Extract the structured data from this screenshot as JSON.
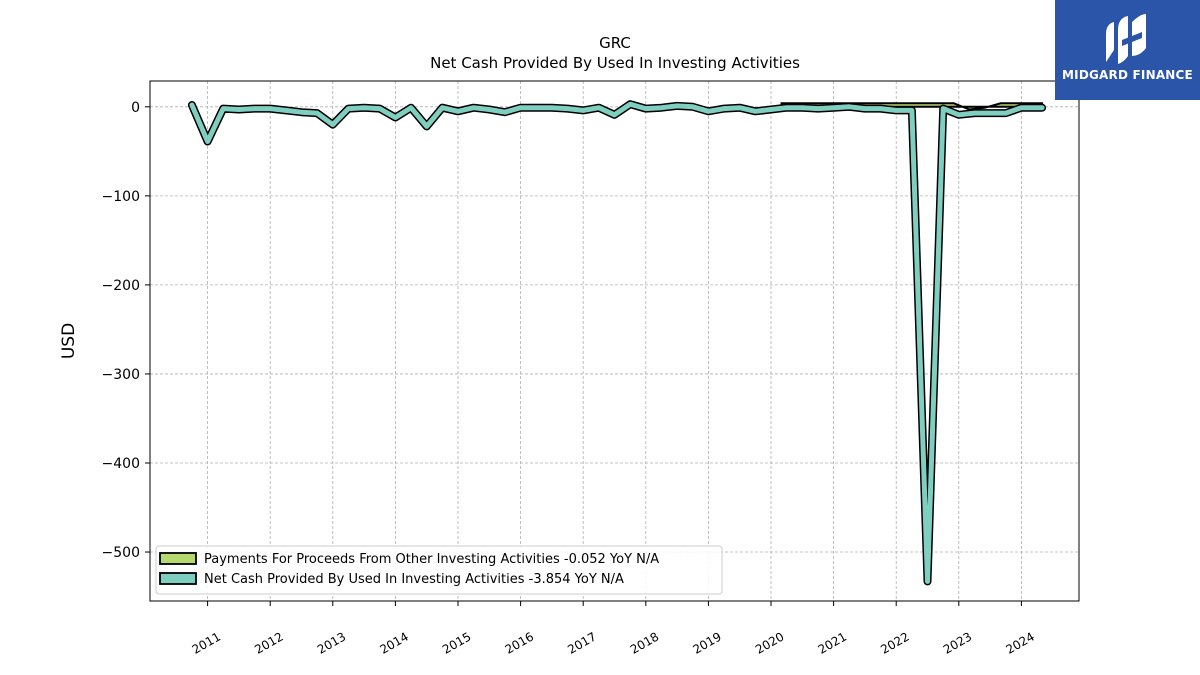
{
  "logo": {
    "text": "MIDGARD FINANCE",
    "color": "#2b55a8"
  },
  "chart_data": {
    "type": "line",
    "title": "GRC",
    "subtitle": "Net Cash Provided By Used In Investing Activities",
    "xlabel": "",
    "ylabel": "USD",
    "xlim": [
      2010.08,
      2024.92
    ],
    "ylim": [
      -555,
      29
    ],
    "x_ticks": [
      "2011",
      "2012",
      "2013",
      "2014",
      "2015",
      "2016",
      "2017",
      "2018",
      "2019",
      "2020",
      "2021",
      "2022",
      "2023",
      "2024"
    ],
    "y_ticks": [
      0,
      -100,
      -200,
      -300,
      -400,
      -500
    ],
    "y_tick_labels": [
      "0",
      "−100",
      "−200",
      "−300",
      "−400",
      "−500"
    ],
    "grid": true,
    "legend_position": "lower-left",
    "series": [
      {
        "name": "Payments For Proceeds From Other Investing Activities  -0.052 YoY N/A",
        "style": "area",
        "color": "#b5d96e",
        "x": [
          2020.17,
          2020.42,
          2020.67,
          2020.92,
          2021.17,
          2021.42,
          2021.67,
          2021.92,
          2022.17,
          2022.42,
          2022.67,
          2022.92,
          2023.17,
          2023.42,
          2023.67,
          2023.92,
          2024.17,
          2024.33
        ],
        "values": [
          4,
          4,
          4,
          4,
          4,
          4,
          4,
          4,
          4,
          4,
          4,
          4,
          -3,
          -1,
          4,
          4,
          4,
          4
        ]
      },
      {
        "name": "Net Cash Provided By Used In Investing Activities  -3.854 YoY N/A",
        "style": "line",
        "color": "#7fcfc1",
        "x": [
          2010.75,
          2011.0,
          2011.25,
          2011.5,
          2011.75,
          2012.0,
          2012.25,
          2012.5,
          2012.75,
          2013.0,
          2013.25,
          2013.5,
          2013.75,
          2014.0,
          2014.25,
          2014.5,
          2014.75,
          2015.0,
          2015.25,
          2015.5,
          2015.75,
          2016.0,
          2016.25,
          2016.5,
          2016.75,
          2017.0,
          2017.25,
          2017.5,
          2017.75,
          2018.0,
          2018.25,
          2018.5,
          2018.75,
          2019.0,
          2019.25,
          2019.5,
          2019.75,
          2020.0,
          2020.25,
          2020.5,
          2020.75,
          2021.0,
          2021.25,
          2021.5,
          2021.75,
          2022.0,
          2022.25,
          2022.5,
          2022.75,
          2023.0,
          2023.25,
          2023.5,
          2023.75,
          2024.0,
          2024.33
        ],
        "values": [
          2,
          -39,
          -2,
          -3,
          -2,
          -2,
          -4,
          -6,
          -7,
          -20,
          -2,
          -1,
          -2,
          -12,
          -1,
          -22,
          -1,
          -5,
          -1,
          -3,
          -6,
          -1,
          -1,
          -1,
          -2,
          -4,
          -1,
          -9,
          3,
          -2,
          -1,
          1,
          0,
          -5,
          -2,
          -1,
          -5,
          -3,
          -1,
          -1,
          -2,
          -1,
          0,
          -2,
          -2,
          -4,
          -4,
          -533,
          -2,
          -9,
          -7,
          -7,
          -7,
          -1,
          -1
        ]
      }
    ]
  }
}
